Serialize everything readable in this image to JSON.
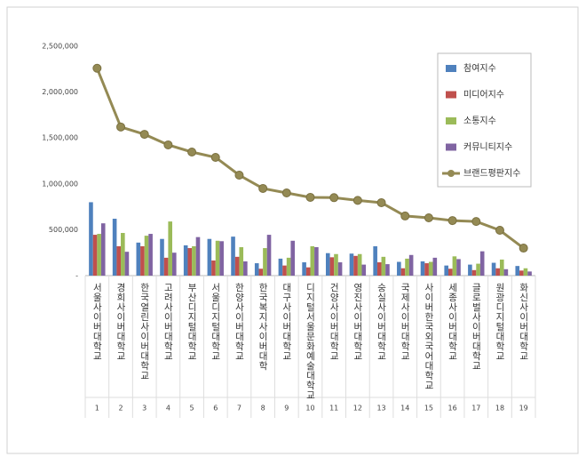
{
  "chart_data": {
    "type": "bar-line",
    "categories": [
      "서울사이버대학교",
      "경희사이버대학교",
      "한국열린사이버대학교",
      "고려사이버대학교",
      "부산디지털대학교",
      "서울디지털대학교",
      "한양사이버대학교",
      "한국복지사이버대학",
      "대구사이버대학교",
      "디지털서울문화예술대학교",
      "건양사이버대학교",
      "영진사이버대학교",
      "숭실사이버대학교",
      "국제사이버대학교",
      "사이버한국외국어대학교",
      "세종사이버대학교",
      "글로벌사이버대학교",
      "원광디지털대학교",
      "화신사이버대학교"
    ],
    "ranks": [
      1,
      2,
      3,
      4,
      5,
      6,
      7,
      8,
      9,
      10,
      11,
      12,
      13,
      14,
      15,
      16,
      17,
      18,
      19
    ],
    "series": [
      {
        "name": "참여지수",
        "color": "#4f81bd",
        "type": "bar",
        "values": [
          800000,
          620000,
          360000,
          400000,
          330000,
          400000,
          425000,
          135000,
          185000,
          145000,
          245000,
          240000,
          320000,
          150000,
          155000,
          110000,
          120000,
          140000,
          105000
        ]
      },
      {
        "name": "미디어지수",
        "color": "#c0504d",
        "type": "bar",
        "values": [
          445000,
          320000,
          320000,
          195000,
          300000,
          165000,
          205000,
          75000,
          110000,
          90000,
          200000,
          215000,
          145000,
          80000,
          135000,
          75000,
          60000,
          80000,
          55000
        ]
      },
      {
        "name": "소통지수",
        "color": "#9bbb59",
        "type": "bar",
        "values": [
          455000,
          465000,
          435000,
          590000,
          320000,
          380000,
          310000,
          300000,
          195000,
          320000,
          235000,
          235000,
          205000,
          185000,
          150000,
          210000,
          130000,
          175000,
          80000
        ]
      },
      {
        "name": "커뮤니티지수",
        "color": "#8064a2",
        "type": "bar",
        "values": [
          570000,
          260000,
          455000,
          250000,
          420000,
          375000,
          155000,
          445000,
          380000,
          310000,
          145000,
          120000,
          125000,
          225000,
          195000,
          180000,
          265000,
          70000,
          45000
        ]
      },
      {
        "name": "브랜드평판지수",
        "color": "#948a54",
        "type": "line",
        "values": [
          2260000,
          1620000,
          1540000,
          1425000,
          1347000,
          1289000,
          1095000,
          950000,
          901000,
          853000,
          850000,
          820000,
          795000,
          650000,
          630000,
          600000,
          590000,
          494000,
          300000
        ]
      }
    ],
    "ylim": [
      0,
      2500000
    ],
    "yticks": [
      {
        "value": 0,
        "label": "-"
      },
      {
        "value": 500000,
        "label": "500,000"
      },
      {
        "value": 1000000,
        "label": "1,000,000"
      },
      {
        "value": 1500000,
        "label": "1,500,000"
      },
      {
        "value": 2000000,
        "label": "2,000,000"
      },
      {
        "value": 2500000,
        "label": "2,500,000"
      }
    ]
  }
}
